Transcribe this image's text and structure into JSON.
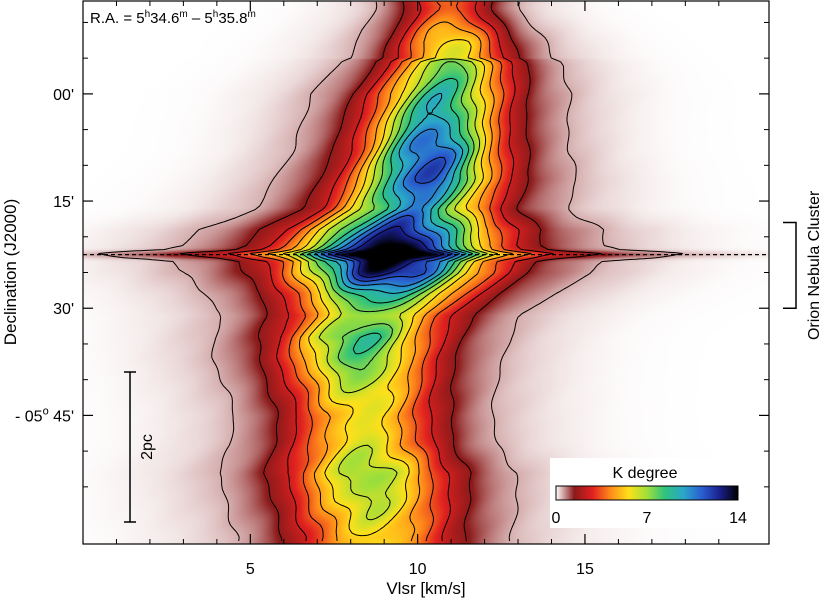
{
  "chart_data": {
    "type": "heatmap",
    "title": "",
    "xlabel": "Vlsr [km/s]",
    "ylabel": "Declination (J2000)",
    "xlim": [
      0,
      20.5
    ],
    "ylim_arcmin_offset": [
      -13,
      63
    ],
    "x_ticks": [
      {
        "value": 5,
        "label": "5"
      },
      {
        "value": 10,
        "label": "10"
      },
      {
        "value": 15,
        "label": "15"
      }
    ],
    "y_ticks": [
      {
        "value": 0,
        "label": "00'"
      },
      {
        "value": 15,
        "label": "15'"
      },
      {
        "value": 30,
        "label": "30'"
      },
      {
        "value": 45,
        "label": "- 05",
        "sup": "o",
        "suffix": " 45'"
      }
    ],
    "annotation_ra": {
      "prefix": "R.A. = 5",
      "h1": "h",
      "mid1": "34.6",
      "m1": "m",
      "mid2": " – 5",
      "h2": "h",
      "mid3": "35.8",
      "m2": "m"
    },
    "scale_bar_label": "2pc",
    "region_label": "Orion Nebula Cluster",
    "region_dec_range": [
      18,
      30
    ],
    "ridge_line_dec": 22.5,
    "colorbar": {
      "title": "K degree",
      "min": 0,
      "max": 14,
      "ticks": [
        {
          "value": 0,
          "label": "0"
        },
        {
          "value": 7,
          "label": "7"
        },
        {
          "value": 14,
          "label": "14"
        }
      ],
      "colors": [
        "#ffffff",
        "#8b1a1a",
        "#e02020",
        "#ff8c1a",
        "#ffe01a",
        "#9fdf3a",
        "#2ec27e",
        "#2aa7c9",
        "#2a5fd0",
        "#1a1f8c",
        "#000000"
      ]
    },
    "contour_levels": [
      0.5,
      1.5,
      2.5,
      3.5,
      4.5,
      5.5,
      6.5,
      7.5,
      8.5,
      9.5,
      10.5,
      11.5,
      12.5
    ],
    "ridge_profile": [
      {
        "dec": -12,
        "v": 10.9,
        "peak": 4.0,
        "w": 0.9
      },
      {
        "dec": -8,
        "v": 11.0,
        "peak": 5.0,
        "w": 1.0
      },
      {
        "dec": -4,
        "v": 11.0,
        "peak": 7.0,
        "w": 1.1
      },
      {
        "dec": 0,
        "v": 10.7,
        "peak": 8.0,
        "w": 1.2
      },
      {
        "dec": 4,
        "v": 10.5,
        "peak": 9.0,
        "w": 1.2
      },
      {
        "dec": 8,
        "v": 10.4,
        "peak": 10.5,
        "w": 1.2
      },
      {
        "dec": 12,
        "v": 10.2,
        "peak": 10.5,
        "w": 1.3
      },
      {
        "dec": 16,
        "v": 9.8,
        "peak": 9.0,
        "w": 1.4
      },
      {
        "dec": 19,
        "v": 9.5,
        "peak": 11.0,
        "w": 1.7
      },
      {
        "dec": 22,
        "v": 9.2,
        "peak": 13.5,
        "w": 1.7
      },
      {
        "dec": 25,
        "v": 9.1,
        "peak": 12.0,
        "w": 1.7
      },
      {
        "dec": 28,
        "v": 8.9,
        "peak": 8.5,
        "w": 1.6
      },
      {
        "dec": 31,
        "v": 8.6,
        "peak": 6.5,
        "w": 1.5
      },
      {
        "dec": 34,
        "v": 8.3,
        "peak": 7.8,
        "w": 1.4
      },
      {
        "dec": 37,
        "v": 8.2,
        "peak": 7.2,
        "w": 1.4
      },
      {
        "dec": 41,
        "v": 8.3,
        "peak": 6.0,
        "w": 1.4
      },
      {
        "dec": 45,
        "v": 8.4,
        "peak": 5.2,
        "w": 1.4
      },
      {
        "dec": 49,
        "v": 8.4,
        "peak": 5.5,
        "w": 1.4
      },
      {
        "dec": 53,
        "v": 8.5,
        "peak": 6.5,
        "w": 1.5
      },
      {
        "dec": 57,
        "v": 8.6,
        "peak": 6.0,
        "w": 1.5
      },
      {
        "dec": 62,
        "v": 8.7,
        "peak": 5.0,
        "w": 1.5
      }
    ]
  }
}
